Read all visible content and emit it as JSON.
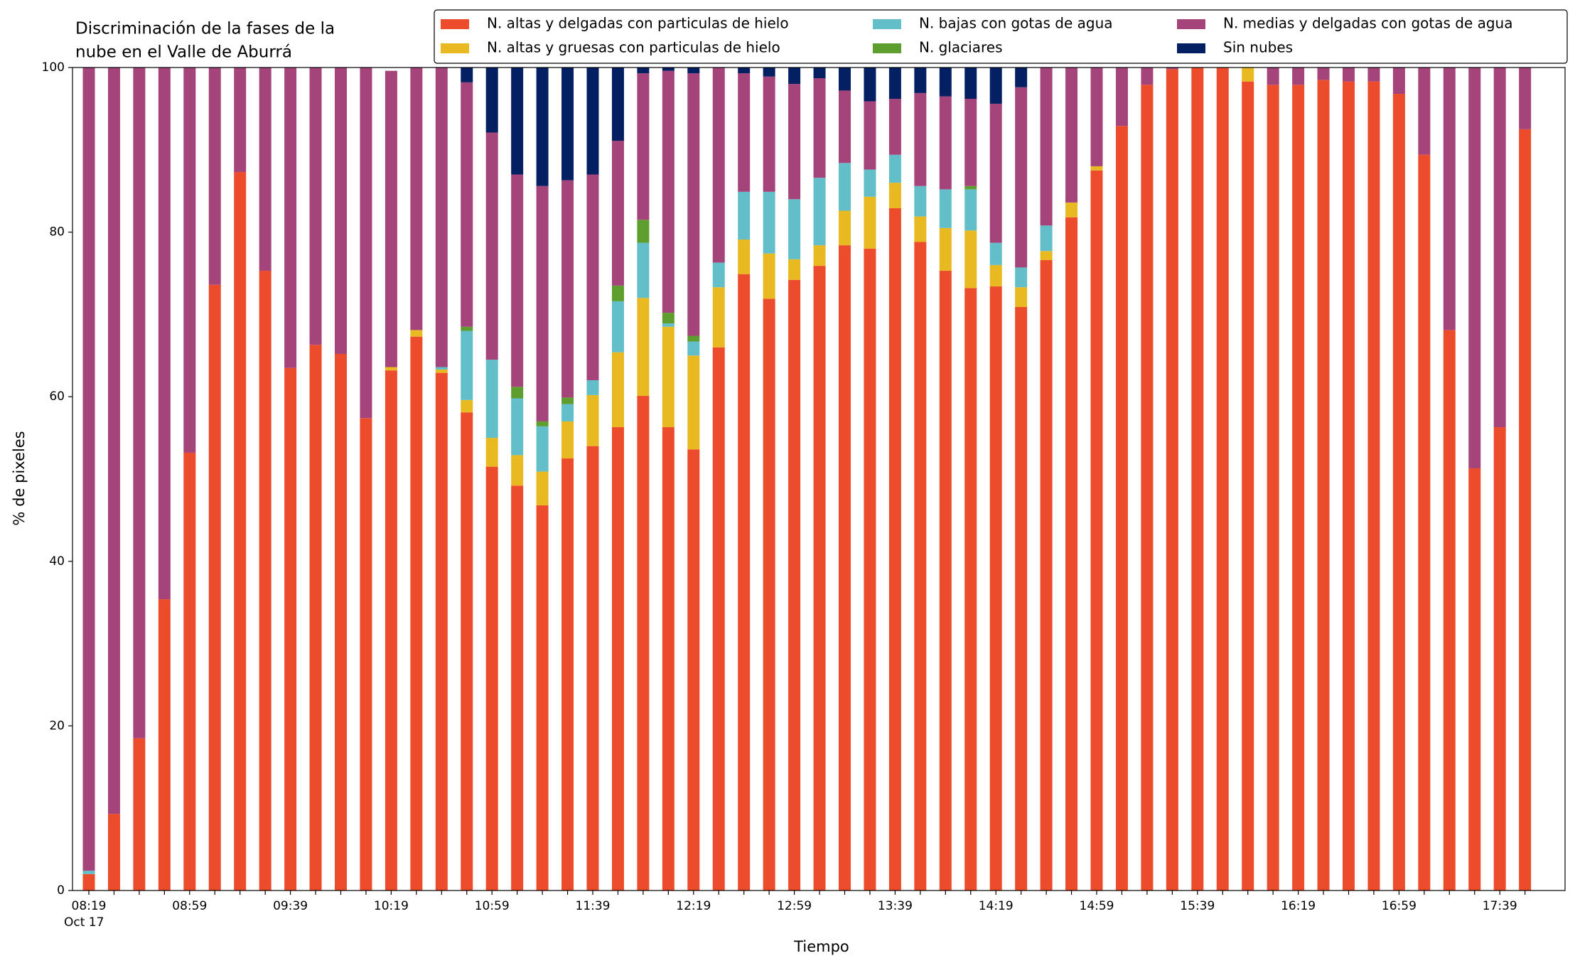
{
  "chart_data": {
    "type": "stacked_bar",
    "title": [
      "Discriminación de la fases de la",
      "nube en el Valle de Aburrá"
    ],
    "xlabel": "Tiempo",
    "ylabel": "% de pixeles",
    "x_sublabel": "Oct 17",
    "categories": [
      "08:19",
      null,
      null,
      null,
      "08:59",
      null,
      null,
      null,
      "09:39",
      null,
      null,
      null,
      "10:19",
      null,
      null,
      null,
      "10:59",
      null,
      null,
      null,
      "11:39",
      null,
      null,
      null,
      "12:19",
      null,
      null,
      null,
      "12:59",
      null,
      null,
      null,
      "13:39",
      null,
      null,
      null,
      "14:19",
      null,
      null,
      null,
      "14:59",
      null,
      null,
      null,
      "15:39",
      null,
      null,
      null,
      "16:19",
      null,
      null,
      null,
      "16:59",
      null,
      null,
      null,
      "17:39",
      null
    ],
    "ylim": [
      0,
      100
    ],
    "yticks": [
      0,
      20,
      40,
      60,
      80,
      100
    ],
    "grid": false,
    "legend": "top",
    "series": [
      {
        "name": "N. altas y delgadas con particulas de hielo",
        "color": "#ec4c2c",
        "values": [
          2.0,
          9.3,
          18.5,
          35.4,
          53.2,
          73.6,
          87.3,
          75.3,
          63.5,
          66.3,
          65.2,
          57.4,
          63.2,
          67.3,
          62.9,
          58.1,
          51.5,
          49.2,
          46.8,
          52.5,
          54.0,
          56.3,
          60.1,
          56.3,
          53.6,
          66.0,
          74.9,
          71.9,
          74.2,
          75.9,
          78.4,
          78.0,
          82.9,
          78.8,
          75.3,
          73.2,
          73.4,
          70.9,
          76.6,
          81.8,
          87.5,
          92.9,
          97.9,
          99.8,
          100,
          100,
          98.3,
          97.9,
          97.9,
          98.5,
          98.3,
          98.3,
          96.8,
          89.4,
          68.1,
          51.3,
          56.3,
          92.5
        ]
      },
      {
        "name": "N. altas y gruesas con particulas de hielo",
        "color": "#e8b921",
        "values": [
          0,
          0,
          0,
          0,
          0,
          0,
          0,
          0,
          0,
          0,
          0,
          0,
          0.4,
          0.8,
          0.4,
          1.5,
          3.5,
          3.7,
          4.1,
          4.5,
          6.2,
          9.1,
          11.9,
          12.2,
          11.4,
          7.3,
          4.2,
          5.5,
          2.5,
          2.5,
          4.2,
          6.3,
          3.1,
          3.1,
          5.2,
          7.0,
          2.6,
          2.4,
          1.1,
          1.8,
          0.5,
          0,
          0,
          0,
          0,
          0,
          1.7,
          0,
          0,
          0,
          0,
          0,
          0,
          0,
          0,
          0,
          0,
          0
        ]
      },
      {
        "name": "N. bajas con gotas de agua",
        "color": "#62bfc9",
        "values": [
          0.4,
          0,
          0,
          0,
          0,
          0,
          0,
          0,
          0,
          0,
          0,
          0,
          0,
          0,
          0.3,
          8.4,
          9.5,
          6.9,
          5.5,
          2.1,
          1.8,
          6.2,
          6.7,
          0.4,
          1.7,
          3.0,
          5.8,
          7.5,
          7.3,
          8.2,
          5.8,
          3.3,
          3.4,
          3.7,
          4.7,
          5.0,
          2.7,
          2.4,
          3.1,
          0,
          0,
          0,
          0,
          0,
          0,
          0,
          0,
          0,
          0,
          0,
          0,
          0,
          0,
          0,
          0,
          0,
          0,
          0
        ]
      },
      {
        "name": "N. glaciares",
        "color": "#5e9e2f",
        "values": [
          0,
          0,
          0,
          0,
          0,
          0,
          0,
          0,
          0,
          0,
          0,
          0,
          0,
          0,
          0,
          0.5,
          0,
          1.4,
          0.6,
          0.8,
          0,
          1.9,
          2.8,
          1.3,
          0.7,
          0,
          0,
          0,
          0,
          0,
          0,
          0,
          0,
          0,
          0,
          0.4,
          0,
          0,
          0,
          0,
          0,
          0,
          0,
          0,
          0,
          0,
          0,
          0,
          0,
          0,
          0,
          0,
          0,
          0,
          0,
          0,
          0,
          0
        ]
      },
      {
        "name": "N. medias y delgadas con gotas de agua",
        "color": "#a4447a",
        "values": [
          97.6,
          90.7,
          81.5,
          64.6,
          46.8,
          26.4,
          12.7,
          24.7,
          36.5,
          33.7,
          34.8,
          42.6,
          36.0,
          31.9,
          36.4,
          29.7,
          27.6,
          25.8,
          28.6,
          26.4,
          25.0,
          17.6,
          17.8,
          29.4,
          31.9,
          23.7,
          14.4,
          14.0,
          14.0,
          12.1,
          8.8,
          8.3,
          6.8,
          11.3,
          11.3,
          10.6,
          16.9,
          21.9,
          19.2,
          16.4,
          12.0,
          7.1,
          2.1,
          0.2,
          0,
          0,
          0,
          2.1,
          2.1,
          1.5,
          1.7,
          1.7,
          3.2,
          10.6,
          31.9,
          48.7,
          43.7,
          7.5
        ]
      },
      {
        "name": "Sin nubes",
        "color": "#052062",
        "values": [
          0,
          0,
          0,
          0,
          0,
          0,
          0,
          0,
          0,
          0,
          0,
          0,
          0,
          0,
          0,
          1.8,
          7.9,
          13.0,
          14.4,
          13.7,
          13.0,
          8.9,
          0.7,
          0.4,
          0.7,
          0,
          0.7,
          1.1,
          2.0,
          1.3,
          2.8,
          4.1,
          3.8,
          3.1,
          3.5,
          3.8,
          4.4,
          2.4,
          0,
          0,
          0,
          0,
          0,
          0,
          0,
          0,
          0,
          0,
          0,
          0,
          0,
          0,
          0,
          0,
          0,
          0,
          0,
          0
        ]
      }
    ]
  }
}
